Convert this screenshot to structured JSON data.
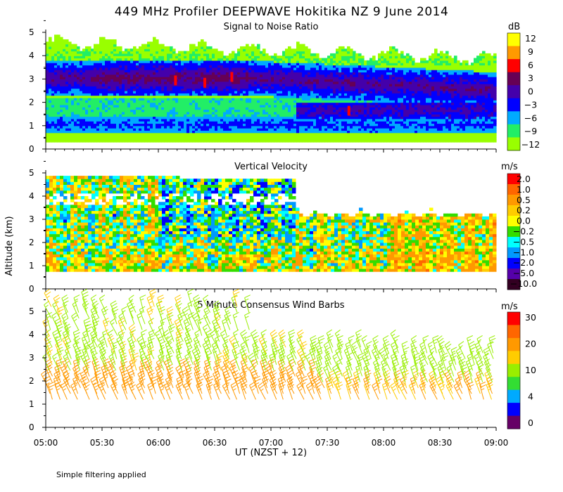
{
  "title": "449 MHz Profiler DEEPWAVE Hokitika NZ  9 June 2014",
  "xlabel": "UT  (NZST + 12)",
  "ylabel": "Altitude (km)",
  "footer": "Simple filtering applied",
  "x_ticks": [
    "05:00",
    "05:30",
    "06:00",
    "06:30",
    "07:00",
    "07:30",
    "08:00",
    "08:30",
    "09:00"
  ],
  "y_ticks": [
    "0",
    "1",
    "2",
    "3",
    "4",
    "5"
  ],
  "chart_data": [
    {
      "type": "heatmap",
      "title": "Signal to Noise Ratio",
      "unit": "dB",
      "xlim": [
        "05:00",
        "09:00"
      ],
      "ylim": [
        0,
        5
      ],
      "colorbar": {
        "labels": [
          "12",
          "9",
          "6",
          "3",
          "0",
          "−3",
          "−6",
          "−9",
          "−12"
        ],
        "colors": [
          "#ffff00",
          "#ff9900",
          "#ff0000",
          "#660055",
          "#4400aa",
          "#0000ff",
          "#00aaff",
          "#22ee66",
          "#99ff00"
        ]
      },
      "bands": [
        {
          "altitude_km": [
            0.6,
            1.4
          ],
          "value_db": -3
        },
        {
          "altitude_km": [
            2.4,
            3.6
          ],
          "value_db": 1
        },
        {
          "altitude_km": [
            3.6,
            4.8
          ],
          "value_db": -11
        }
      ]
    },
    {
      "type": "heatmap",
      "title": "Vertical Velocity",
      "unit": "m/s",
      "xlim": [
        "05:00",
        "09:00"
      ],
      "ylim": [
        0,
        5
      ],
      "colorbar": {
        "labels": [
          "2.0",
          "1.0",
          "0.5",
          "0.2",
          "0.0",
          "−0.2",
          "−0.5",
          "−1.0",
          "−2.0",
          "−5.0",
          "−10.0"
        ],
        "colors": [
          "#ff0000",
          "#ff6600",
          "#ff9900",
          "#ffcc00",
          "#ffff00",
          "#33dd00",
          "#00ffff",
          "#0099ff",
          "#0000ff",
          "#5500aa",
          "#330022"
        ]
      }
    },
    {
      "type": "scatter",
      "title": "5 Minute Consensus Wind Barbs",
      "unit": "m/s",
      "xlim": [
        "05:00",
        "09:00"
      ],
      "ylim": [
        0,
        5
      ],
      "colorbar": {
        "labels": [
          "30",
          "20",
          "10",
          "4",
          "0"
        ],
        "colors": [
          "#ff0000",
          "#ff6600",
          "#ff9900",
          "#ffcc00",
          "#99ee00",
          "#33dd33",
          "#00aaff",
          "#0000ff",
          "#660066"
        ]
      }
    }
  ]
}
